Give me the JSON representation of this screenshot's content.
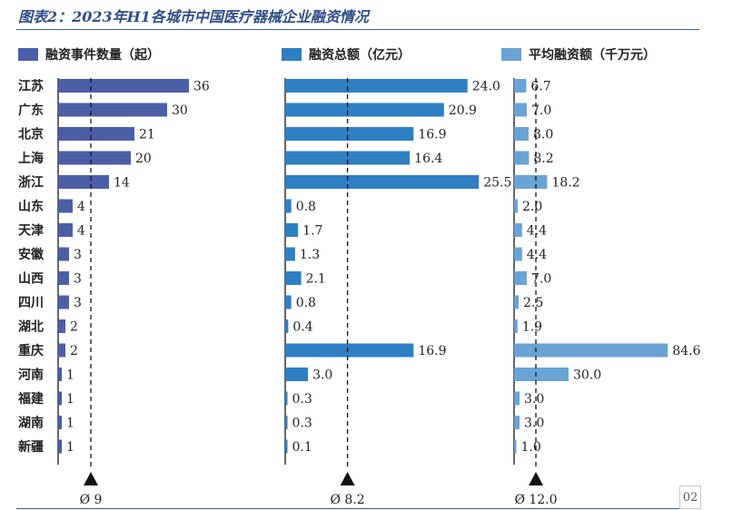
{
  "header": {
    "title": "图表2：2023年H1各城市中国医疗器械企业融资情况"
  },
  "colors": {
    "title": "#2f4f86",
    "series": [
      "#4b5ea8",
      "#2e7fc4",
      "#6aa3d5"
    ]
  },
  "chart_data": {
    "type": "bar",
    "orientation": "horizontal",
    "title": "图表2：2023年H1各城市中国医疗器械企业融资情况",
    "categories": [
      "江苏",
      "广东",
      "北京",
      "上海",
      "浙江",
      "山东",
      "天津",
      "安徽",
      "山西",
      "四川",
      "湖北",
      "重庆",
      "河南",
      "福建",
      "湖南",
      "新疆"
    ],
    "series": [
      {
        "name": "融资事件数量（起）",
        "values": [
          36,
          30,
          21,
          20,
          14,
          4,
          4,
          3,
          3,
          3,
          2,
          2,
          1,
          1,
          1,
          1
        ],
        "labels": [
          "36",
          "30",
          "21",
          "20",
          "14",
          "4",
          "4",
          "3",
          "3",
          "3",
          "2",
          "2",
          "1",
          "1",
          "1",
          "1"
        ],
        "average": 9,
        "average_label": "Ø 9",
        "xlim": [
          0,
          40
        ]
      },
      {
        "name": "融资总额（亿元）",
        "values": [
          24.0,
          20.9,
          16.9,
          16.4,
          25.5,
          0.8,
          1.7,
          1.3,
          2.1,
          0.8,
          0.4,
          16.9,
          3.0,
          0.3,
          0.3,
          0.1
        ],
        "labels": [
          "24.0",
          "20.9",
          "16.9",
          "16.4",
          "25.5",
          "0.8",
          "1.7",
          "1.3",
          "2.1",
          "0.8",
          "0.4",
          "16.9",
          "3.0",
          "0.3",
          "0.3",
          "0.1"
        ],
        "average": 8.2,
        "average_label": "Ø 8.2",
        "xlim": [
          0,
          27.5
        ]
      },
      {
        "name": "平均融资额（千万元）",
        "values": [
          6.7,
          7.0,
          8.0,
          8.2,
          18.2,
          2.0,
          4.4,
          4.4,
          7.0,
          2.5,
          1.9,
          84.6,
          30.0,
          3.0,
          3.0,
          1.0
        ],
        "labels": [
          "6.7",
          "7.0",
          "8.0",
          "8.2",
          "18.2",
          "2.0",
          "4.4",
          "4.4",
          "7.0",
          "2.5",
          "1.9",
          "84.6",
          "30.0",
          "3.0",
          "3.0",
          "1.0"
        ],
        "average": 12.0,
        "average_label": "Ø 12.0",
        "xlim": [
          0,
          100
        ]
      }
    ]
  },
  "footer": {
    "page_number": "02"
  }
}
